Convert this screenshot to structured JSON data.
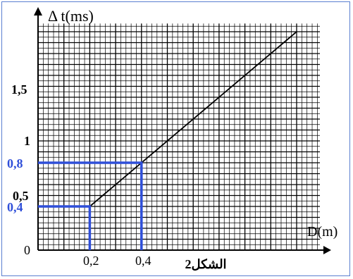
{
  "chart_data": {
    "type": "line",
    "caption": "الشكل2",
    "xlabel": "D(m)",
    "ylabel": "Δ t(ms)",
    "x_ticks": [
      "0",
      "0,2",
      "0,4"
    ],
    "y_ticks": [
      "0",
      "0,4",
      "0,5",
      "0,8",
      "1",
      "1,5"
    ],
    "highlighted_ticks": [
      "0,2",
      "0,4",
      "0,4",
      "0,8"
    ],
    "series": [
      {
        "x": [
          0.2,
          1.0
        ],
        "y": [
          0.4,
          2.0
        ]
      }
    ],
    "highlight_points": [
      {
        "x": 0.2,
        "y": 0.4
      },
      {
        "x": 0.4,
        "y": 0.8
      }
    ],
    "xlim": [
      0,
      1.09
    ],
    "ylim": [
      0,
      2.075
    ],
    "grid": true,
    "colors": {
      "line": "#000000",
      "grid": "#000000",
      "highlight": "#2f4fd9",
      "frame": "#5a7fd0"
    }
  }
}
